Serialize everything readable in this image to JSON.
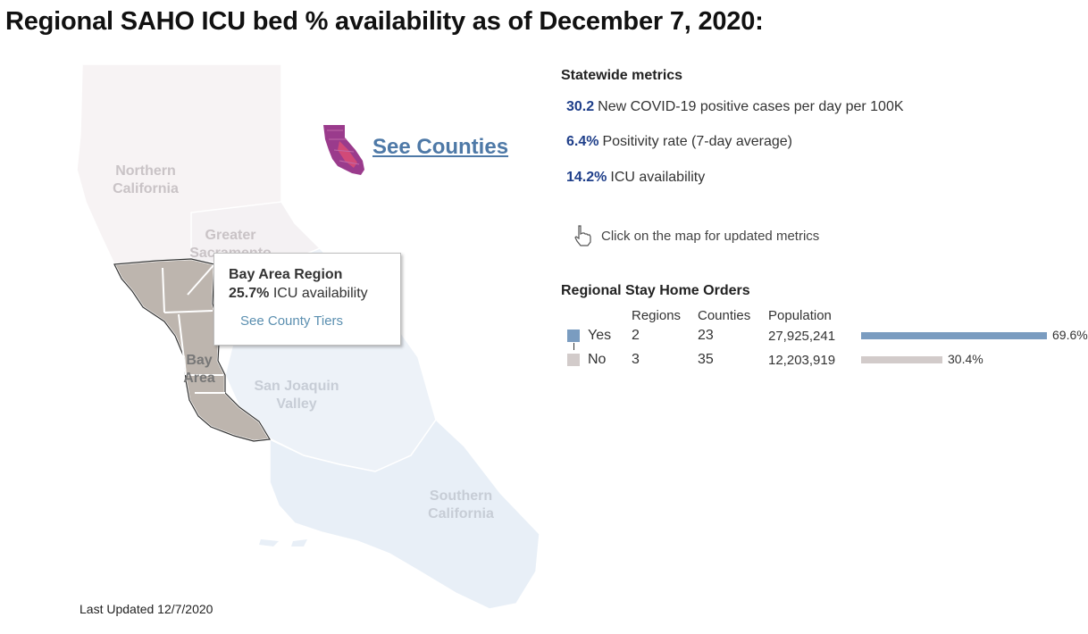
{
  "title": "Regional SAHO ICU bed % availability as of December 7, 2020:",
  "map": {
    "regions": [
      {
        "name_line1": "Northern",
        "name_line2": "California"
      },
      {
        "name_line1": "Greater",
        "name_line2": "Sacramento"
      },
      {
        "name_line1": "Bay",
        "name_line2": "Area"
      },
      {
        "name_line1": "San Joaquin",
        "name_line2": "Valley"
      },
      {
        "name_line1": "Southern",
        "name_line2": "California"
      }
    ],
    "colors": {
      "northern": "#f7f3f4",
      "sacramento": "#f4f1f3",
      "bay_area": "#bdb5ae",
      "san_joaquin": "#edf2f8",
      "southern": "#e8eff7"
    }
  },
  "tooltip": {
    "title": "Bay Area Region",
    "value": "25.7%",
    "value_label": "ICU availability",
    "link": "See County Tiers"
  },
  "see_counties": "See Counties",
  "statewide": {
    "title": "Statewide metrics",
    "metrics": [
      {
        "value": "30.2",
        "label": "New COVID-19 positive cases per day per 100K"
      },
      {
        "value": "6.4%",
        "label": "Positivity rate (7-day average)"
      },
      {
        "value": "14.2%",
        "label": "ICU availability"
      }
    ],
    "hint": "Click on the map for updated metrics"
  },
  "orders": {
    "title": "Regional Stay Home Orders",
    "headers": {
      "regions": "Regions",
      "counties": "Counties",
      "population": "Population"
    },
    "rows": [
      {
        "label": "Yes",
        "regions": "2",
        "counties": "23",
        "population": "27,925,241",
        "share": 0.696,
        "pct": "69.6%",
        "color": "#7a9cc0"
      },
      {
        "label": "No",
        "regions": "3",
        "counties": "35",
        "population": "12,203,919",
        "share": 0.304,
        "pct": "30.4%",
        "color": "#d2cbca"
      }
    ]
  },
  "last_updated": "Last Updated 12/7/2020"
}
